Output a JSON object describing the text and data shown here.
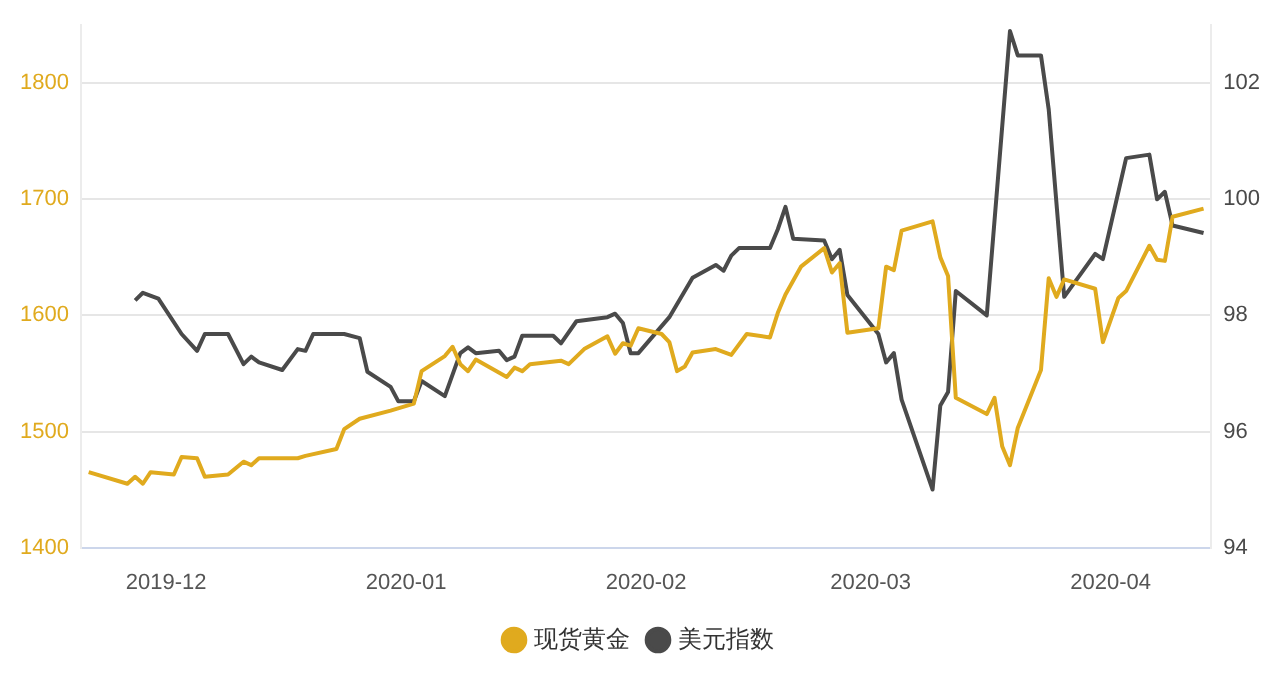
{
  "chart_data": {
    "type": "line",
    "x": [
      "2019-11-21",
      "2019-11-26",
      "2019-11-27",
      "2019-11-28",
      "2019-11-29",
      "2019-12-02",
      "2019-12-03",
      "2019-12-05",
      "2019-12-06",
      "2019-12-09",
      "2019-12-11",
      "2019-12-12",
      "2019-12-13",
      "2019-12-18",
      "2019-12-19",
      "2019-12-23",
      "2019-12-24",
      "2019-12-26",
      "2019-12-30",
      "2020-01-02",
      "2020-01-03",
      "2020-01-06",
      "2020-01-07",
      "2020-01-08",
      "2020-01-09",
      "2020-01-10",
      "2020-01-14",
      "2020-01-15",
      "2020-01-16",
      "2020-01-17",
      "2020-01-21",
      "2020-01-22",
      "2020-01-24",
      "2020-01-27",
      "2020-01-28",
      "2020-01-29",
      "2020-01-30",
      "2020-01-31",
      "2020-02-03",
      "2020-02-04",
      "2020-02-05",
      "2020-02-06",
      "2020-02-07",
      "2020-02-10",
      "2020-02-12",
      "2020-02-14",
      "2020-02-17",
      "2020-02-18",
      "2020-02-19",
      "2020-02-21",
      "2020-02-24",
      "2020-02-25",
      "2020-02-26",
      "2020-02-27",
      "2020-03-02",
      "2020-03-03",
      "2020-03-04",
      "2020-03-05",
      "2020-03-09",
      "2020-03-10",
      "2020-03-11",
      "2020-03-12",
      "2020-03-16",
      "2020-03-17",
      "2020-03-18",
      "2020-03-19",
      "2020-03-20",
      "2020-03-23",
      "2020-03-24",
      "2020-03-25",
      "2020-03-26",
      "2020-03-30",
      "2020-03-31",
      "2020-04-02",
      "2020-04-03",
      "2020-04-06",
      "2020-04-07",
      "2020-04-08",
      "2020-04-09",
      "2020-04-13"
    ],
    "series": [
      {
        "name": "现货黄金",
        "color": "#e0aa1e",
        "axis": "y",
        "values": [
          1465,
          1455,
          1461,
          1455,
          1465,
          1463,
          1478,
          1477,
          1461,
          1463,
          1474,
          1471,
          1477,
          1477,
          1479,
          1485,
          1502,
          1511,
          1518,
          1524,
          1552,
          1565,
          1573,
          1558,
          1552,
          1562,
          1547,
          1555,
          1552,
          1558,
          1561,
          1558,
          1571,
          1582,
          1567,
          1576,
          1574,
          1589,
          1584,
          1577,
          1552,
          1556,
          1568,
          1571,
          1566,
          1584,
          1581,
          1602,
          1618,
          1642,
          1658,
          1637,
          1645,
          1585,
          1589,
          1642,
          1639,
          1673,
          1681,
          1650,
          1634,
          1529,
          1515,
          1529,
          1487,
          1471,
          1503,
          1553,
          1632,
          1616,
          1631,
          1623,
          1577,
          1615,
          1621,
          1660,
          1648,
          1647,
          1685,
          1692
        ]
      },
      {
        "name": "美元指数",
        "color": "#4a4a4a",
        "axis": "y2",
        "x": [
          "2019-11-27",
          "2019-11-28",
          "2019-11-30",
          "2019-12-03",
          "2019-12-05",
          "2019-12-06",
          "2019-12-09",
          "2019-12-11",
          "2019-12-12",
          "2019-12-13",
          "2019-12-16",
          "2019-12-18",
          "2019-12-19",
          "2019-12-20",
          "2019-12-24",
          "2019-12-26",
          "2019-12-27",
          "2019-12-30",
          "2019-12-31",
          "2020-01-02",
          "2020-01-03",
          "2020-01-06",
          "2020-01-08",
          "2020-01-09",
          "2020-01-10",
          "2020-01-13",
          "2020-01-14",
          "2020-01-15",
          "2020-01-16",
          "2020-01-20",
          "2020-01-21",
          "2020-01-23",
          "2020-01-27",
          "2020-01-28",
          "2020-01-29",
          "2020-01-30",
          "2020-01-31",
          "2020-02-04",
          "2020-02-07",
          "2020-02-10",
          "2020-02-11",
          "2020-02-12",
          "2020-02-13",
          "2020-02-17",
          "2020-02-18",
          "2020-02-19",
          "2020-02-20",
          "2020-02-24",
          "2020-02-25",
          "2020-02-26",
          "2020-02-27",
          "2020-03-02",
          "2020-03-03",
          "2020-03-04",
          "2020-03-05",
          "2020-03-09",
          "2020-03-10",
          "2020-03-11",
          "2020-03-12",
          "2020-03-16",
          "2020-03-19",
          "2020-03-20",
          "2020-03-23",
          "2020-03-24",
          "2020-03-26",
          "2020-03-30",
          "2020-03-31",
          "2020-04-03",
          "2020-04-06",
          "2020-04-07",
          "2020-04-08",
          "2020-04-09",
          "2020-04-13"
        ],
        "values": [
          98.26,
          98.39,
          98.29,
          97.68,
          97.39,
          97.68,
          97.68,
          97.16,
          97.29,
          97.19,
          97.06,
          97.42,
          97.39,
          97.68,
          97.68,
          97.61,
          97.03,
          96.77,
          96.52,
          96.52,
          96.87,
          96.61,
          97.35,
          97.45,
          97.35,
          97.39,
          97.23,
          97.29,
          97.65,
          97.65,
          97.52,
          97.9,
          97.97,
          98.03,
          97.87,
          97.35,
          97.35,
          97.97,
          98.65,
          98.87,
          98.77,
          99.03,
          99.16,
          99.16,
          99.48,
          99.87,
          99.32,
          99.29,
          98.97,
          99.13,
          98.35,
          97.68,
          97.19,
          97.35,
          96.55,
          95.0,
          96.45,
          96.68,
          98.42,
          98.0,
          102.9,
          102.48,
          102.48,
          101.55,
          98.32,
          99.06,
          98.97,
          100.71,
          100.77,
          100.0,
          100.13,
          99.55,
          99.42
        ]
      }
    ],
    "xlim": [
      "2019-11-20",
      "2020-04-14"
    ],
    "xticks": [
      {
        "value": "2019-12-01",
        "label": "2019-12"
      },
      {
        "value": "2020-01-01",
        "label": "2020-01"
      },
      {
        "value": "2020-02-01",
        "label": "2020-02"
      },
      {
        "value": "2020-03-01",
        "label": "2020-03"
      },
      {
        "value": "2020-04-01",
        "label": "2020-04"
      }
    ],
    "ylim": [
      1400,
      1850
    ],
    "yticks": [
      1400,
      1500,
      1600,
      1700,
      1800
    ],
    "y2lim": [
      94,
      103
    ],
    "y2ticks": [
      94,
      96,
      98,
      100,
      102
    ],
    "grid": "y",
    "legend": "bottom",
    "marker": "none",
    "line_style": "solid"
  }
}
